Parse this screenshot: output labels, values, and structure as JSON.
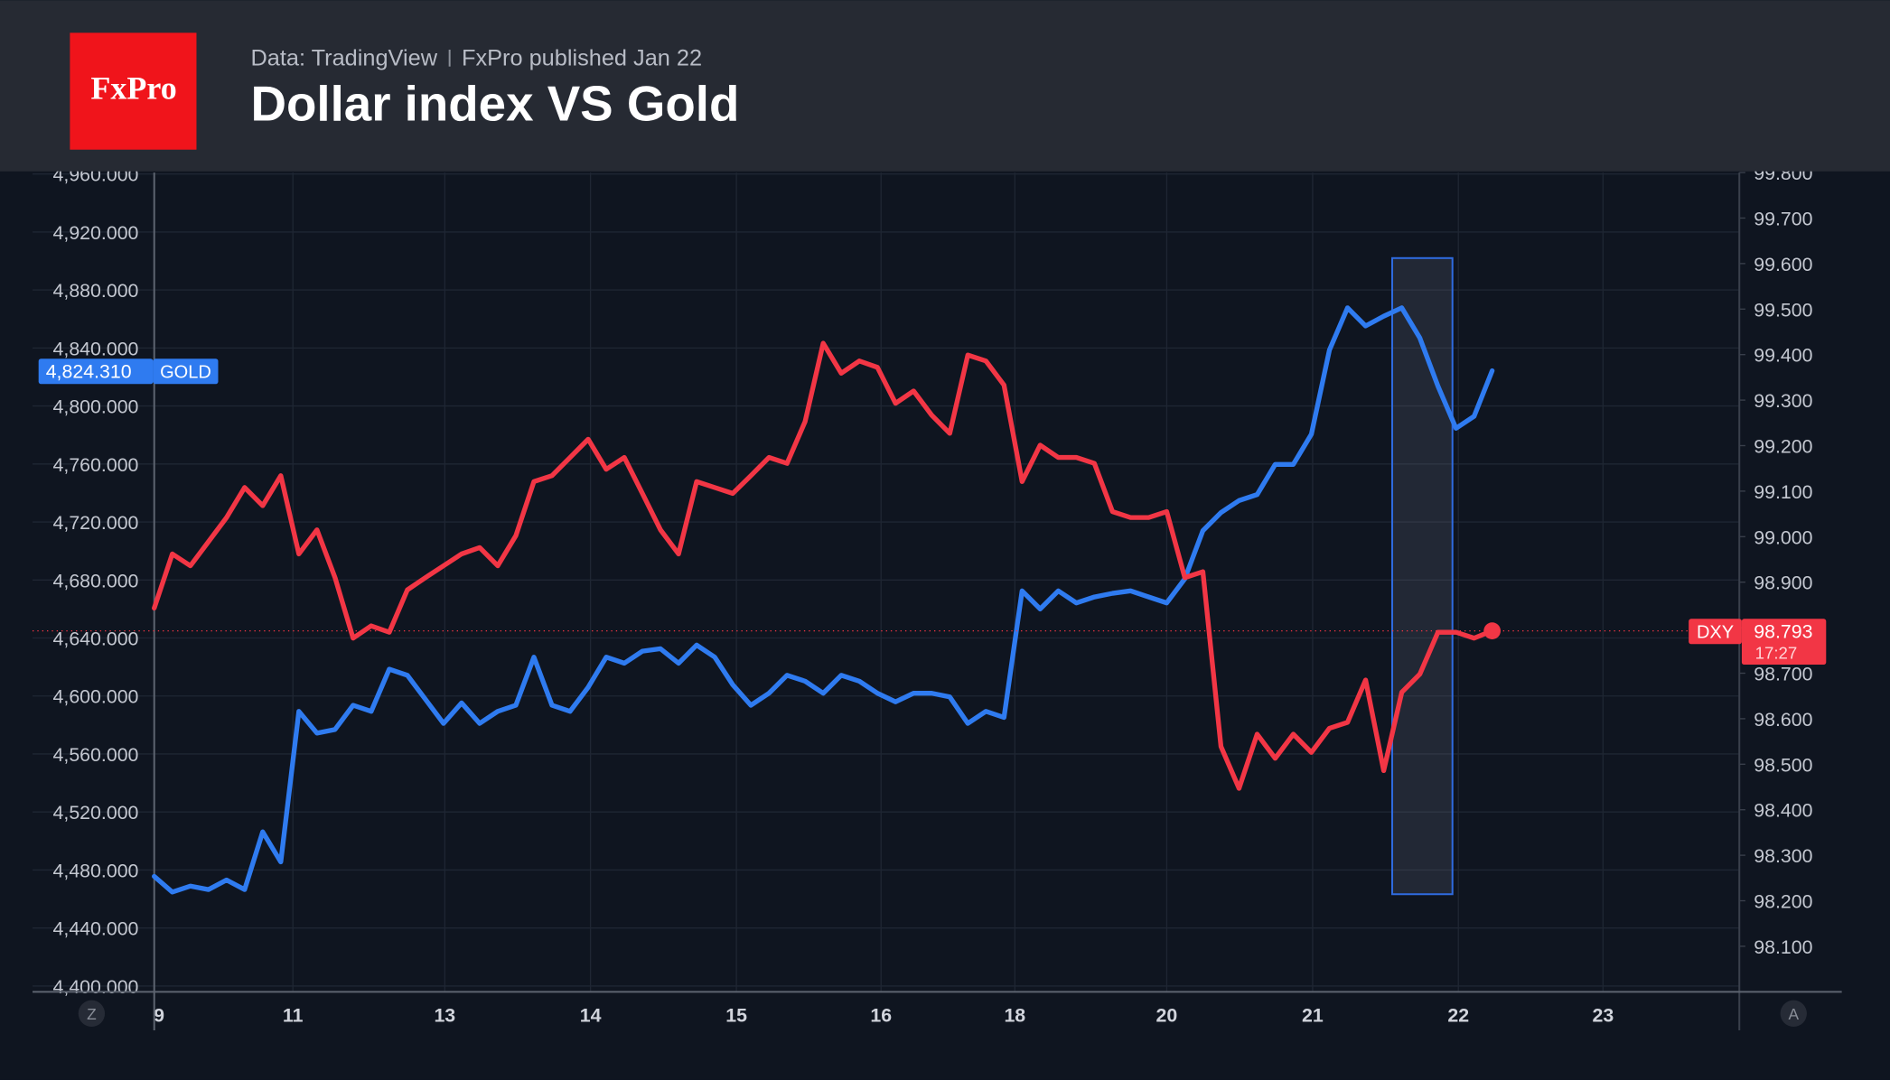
{
  "chart_data": {
    "type": "line",
    "logo": "FxPro",
    "source": "Data: TradingView",
    "subtitle": "FxPro published Jan 22",
    "title": "Dollar index VS Gold",
    "x": [
      0,
      1,
      2,
      3,
      4,
      5,
      6,
      7,
      8,
      9,
      10,
      11,
      12,
      13,
      14,
      15,
      16,
      17,
      18,
      19,
      20,
      21,
      22,
      23,
      24,
      25,
      26,
      27,
      28,
      29,
      30,
      31,
      32,
      33,
      34,
      35,
      36,
      37,
      38,
      39,
      40,
      41,
      42,
      43,
      44,
      45,
      46,
      47,
      48,
      49,
      50,
      51,
      52,
      53,
      54,
      55,
      56,
      57,
      58,
      59,
      60,
      61,
      62,
      63,
      64,
      65,
      66,
      67,
      68,
      69,
      70,
      71,
      72,
      73,
      74
    ],
    "xlim": [
      -6.73,
      87.67
    ],
    "xticks": [
      {
        "value": 0,
        "label": "9"
      },
      {
        "value": 7.67,
        "label": "11"
      },
      {
        "value": 16.07,
        "label": "13"
      },
      {
        "value": 24.13,
        "label": "14"
      },
      {
        "value": 32.2,
        "label": "15"
      },
      {
        "value": 40.2,
        "label": "16"
      },
      {
        "value": 47.6,
        "label": "18"
      },
      {
        "value": 56,
        "label": "20"
      },
      {
        "value": 64.07,
        "label": "21"
      },
      {
        "value": 72.13,
        "label": "22"
      },
      {
        "value": 80.13,
        "label": "23"
      }
    ],
    "ylim": [
      4396,
      4961
    ],
    "yticks": [
      {
        "value": 4400,
        "label": "4,400.000"
      },
      {
        "value": 4440,
        "label": "4,440.000"
      },
      {
        "value": 4480,
        "label": "4,480.000"
      },
      {
        "value": 4520,
        "label": "4,520.000"
      },
      {
        "value": 4560,
        "label": "4,560.000"
      },
      {
        "value": 4600,
        "label": "4,600.000"
      },
      {
        "value": 4640,
        "label": "4,640.000"
      },
      {
        "value": 4680,
        "label": "4,680.000"
      },
      {
        "value": 4720,
        "label": "4,720.000"
      },
      {
        "value": 4760,
        "label": "4,760.000"
      },
      {
        "value": 4800,
        "label": "4,800.000"
      },
      {
        "value": 4840,
        "label": "4,840.000"
      },
      {
        "value": 4880,
        "label": "4,880.000"
      },
      {
        "value": 4920,
        "label": "4,920.000"
      },
      {
        "value": 4960,
        "label": "4,960.000"
      }
    ],
    "y2lim": [
      98.0,
      99.8
    ],
    "y2ticks": [
      {
        "value": 98.1,
        "label": "98.100"
      },
      {
        "value": 98.2,
        "label": "98.200"
      },
      {
        "value": 98.3,
        "label": "98.300"
      },
      {
        "value": 98.4,
        "label": "98.400"
      },
      {
        "value": 98.5,
        "label": "98.500"
      },
      {
        "value": 98.6,
        "label": "98.600"
      },
      {
        "value": 98.7,
        "label": "98.700"
      },
      {
        "value": 98.8,
        "label": "98.800"
      },
      {
        "value": 98.9,
        "label": "98.900"
      },
      {
        "value": 99.0,
        "label": "99.000"
      },
      {
        "value": 99.1,
        "label": "99.100"
      },
      {
        "value": 99.2,
        "label": "99.200"
      },
      {
        "value": 99.3,
        "label": "99.300"
      },
      {
        "value": 99.4,
        "label": "99.400"
      },
      {
        "value": 99.5,
        "label": "99.500"
      },
      {
        "value": 99.6,
        "label": "99.600"
      },
      {
        "value": 99.7,
        "label": "99.700"
      },
      {
        "value": 99.8,
        "label": "99.800"
      }
    ],
    "grid": true,
    "series": [
      {
        "name": "GOLD",
        "color": "#2f7bf0",
        "last_value_label": "4,824.310",
        "values": [
          4475.6,
          4464.8,
          4468.9,
          4466.5,
          4473.1,
          4466.5,
          4506.3,
          4485.6,
          4589.4,
          4574.4,
          4576.9,
          4593.6,
          4589.4,
          4618.5,
          4614.3,
          4597.7,
          4581.1,
          4595.2,
          4581.1,
          4589.4,
          4593.6,
          4626.8,
          4593.6,
          4589.4,
          4606,
          4626.8,
          4622.6,
          4630.9,
          4632.6,
          4622.6,
          4635.1,
          4626.8,
          4607.7,
          4593.6,
          4601.9,
          4614.3,
          4610.2,
          4601.9,
          4614.3,
          4610.2,
          4601.9,
          4596,
          4601.9,
          4601.9,
          4599.4,
          4581.1,
          4589.4,
          4585.2,
          4672.5,
          4660,
          4672.5,
          4664.2,
          4668.3,
          4670.8,
          4672.5,
          4668.3,
          4664.2,
          4680.8,
          4714,
          4726.5,
          4734.8,
          4738.9,
          4759.7,
          4759.7,
          4780.5,
          4838.6,
          4867.7,
          4855.2,
          4861.9,
          4867.7,
          4846.9,
          4813.7,
          4784.6,
          4792.9,
          4824.31
        ]
      },
      {
        "name": "DXY",
        "color": "#f23645",
        "axis": "y2",
        "last_value_label": "98.793",
        "countdown": "17:27",
        "values": [
          98.843,
          98.962,
          98.936,
          98.989,
          99.042,
          99.108,
          99.068,
          99.134,
          98.962,
          99.015,
          98.91,
          98.777,
          98.804,
          98.79,
          98.883,
          98.91,
          98.936,
          98.962,
          98.976,
          98.936,
          99.002,
          99.121,
          99.134,
          99.174,
          99.214,
          99.148,
          99.174,
          99.095,
          99.015,
          98.962,
          99.121,
          99.108,
          99.095,
          99.134,
          99.174,
          99.161,
          99.253,
          99.425,
          99.359,
          99.386,
          99.372,
          99.293,
          99.32,
          99.267,
          99.227,
          99.399,
          99.386,
          99.333,
          99.121,
          99.201,
          99.174,
          99.174,
          99.161,
          99.055,
          99.042,
          99.042,
          99.055,
          98.91,
          98.923,
          98.539,
          98.447,
          98.566,
          98.513,
          98.566,
          98.526,
          98.579,
          98.592,
          98.685,
          98.486,
          98.658,
          98.698,
          98.79,
          98.79,
          98.777,
          98.793
        ]
      }
    ],
    "buttons": [
      "Z",
      "A"
    ]
  }
}
